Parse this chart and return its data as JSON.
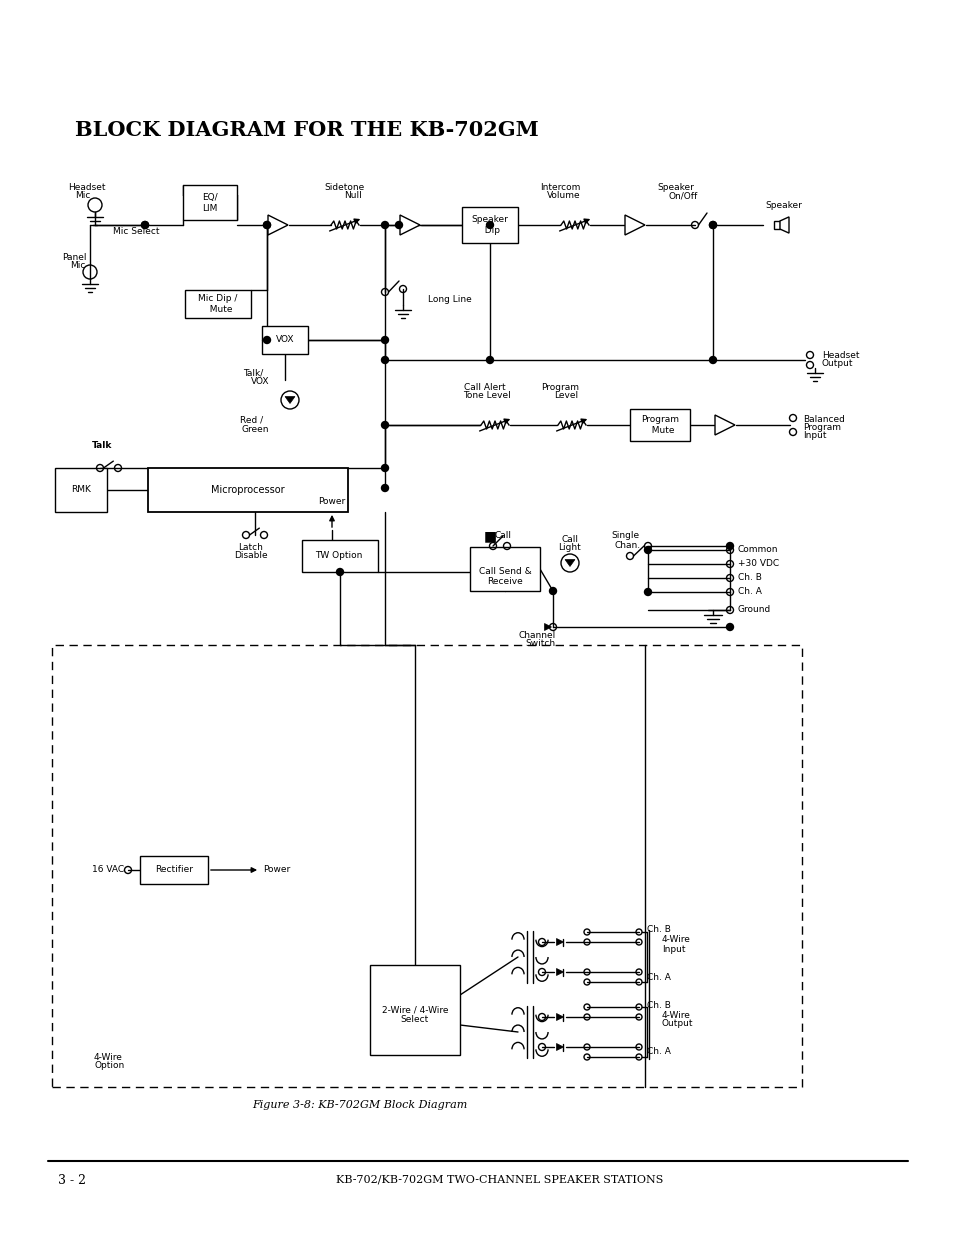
{
  "title": "BLOCK DIAGRAM FOR THE KB-702GM",
  "figure_caption": "Figure 3-8: KB-702GM Block Diagram",
  "footer_left": "3 - 2",
  "footer_right": "KB-702/KB-702GM TWO-CHANNEL SPEAKER STATIONS",
  "bg_color": "#ffffff",
  "line_color": "#000000"
}
